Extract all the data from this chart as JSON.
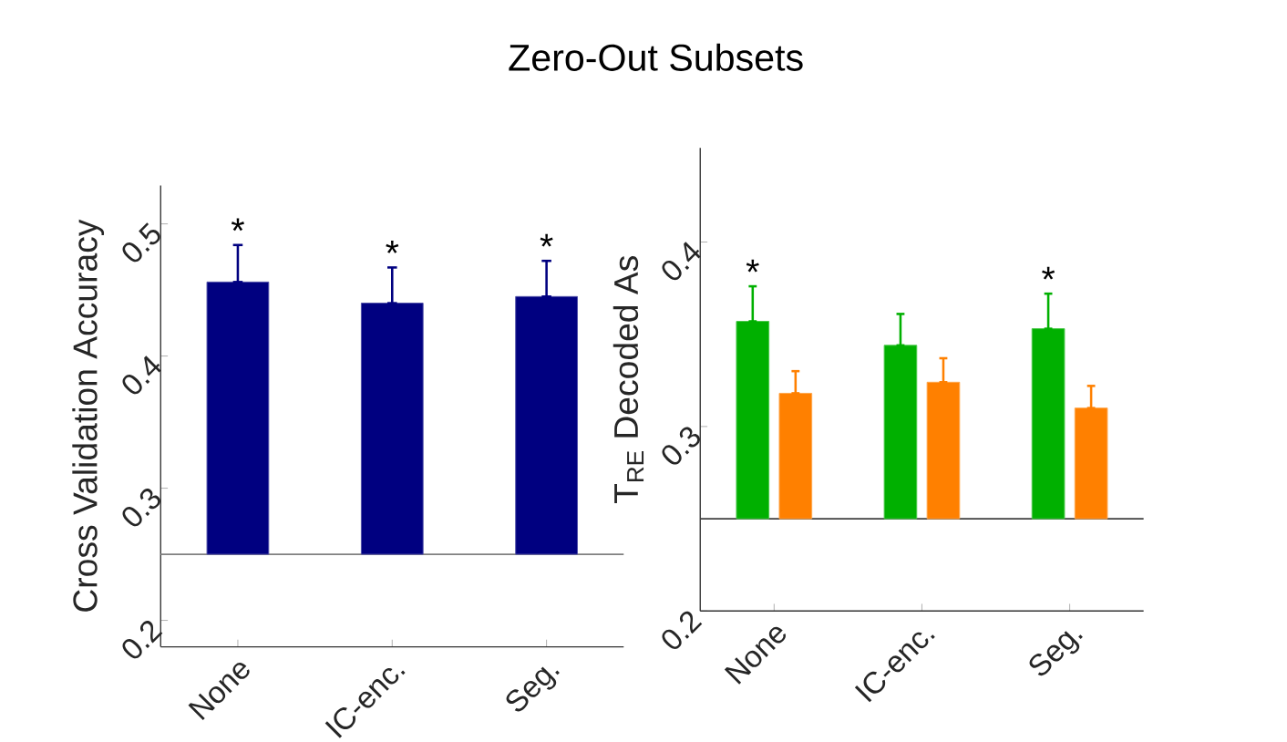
{
  "chart_data": [
    {
      "type": "bar",
      "title": "Zero-Out Subsets",
      "ylabel": "Cross Validation Accuracy",
      "categories": [
        "None",
        "IC-enc.",
        "Seg."
      ],
      "series": [
        {
          "color": "#000080",
          "base": [
            0.25,
            0.25,
            0.25
          ],
          "values": [
            0.206,
            0.19,
            0.195
          ],
          "value_labels": [
            "*",
            "*",
            "*"
          ],
          "errors": [
            [
              0.456,
              0.484
            ],
            [
              0.44,
              0.467
            ],
            [
              0.445,
              0.472
            ]
          ]
        }
      ],
      "ylim": [
        0.18,
        0.529
      ],
      "yticks": [
        0.2,
        0.3,
        0.4,
        0.5
      ],
      "ref_lines": [
        {
          "axis": "y",
          "value": 0.25,
          "color": "#808080"
        }
      ]
    },
    {
      "type": "bar",
      "ylabel": "T$_{RE}$ Decoded As",
      "categories": [
        "None",
        "IC-enc.",
        "Seg."
      ],
      "series": [
        {
          "color": "#00b000",
          "base": [
            0.25,
            0.25,
            0.25
          ],
          "values": [
            0.107,
            0.094,
            0.103
          ],
          "value_labels": [
            "*",
            null,
            "*"
          ],
          "errors": [
            [
              0.357,
              0.376
            ],
            [
              0.344,
              0.361
            ],
            [
              0.353,
              0.372
            ]
          ]
        },
        {
          "color": "#ff8000",
          "base": [
            0.25,
            0.25,
            0.25
          ],
          "values": [
            0.068,
            0.074,
            0.06
          ],
          "errors": [
            [
              0.318,
              0.33
            ],
            [
              0.324,
              0.337
            ],
            [
              0.31,
              0.322
            ]
          ]
        }
      ],
      "ylim": [
        0.2,
        0.451
      ],
      "yticks": [
        0.2,
        0.3,
        0.4
      ],
      "ref_lines": [
        {
          "axis": "y",
          "value": 0.25,
          "color": "#404040"
        }
      ]
    }
  ]
}
